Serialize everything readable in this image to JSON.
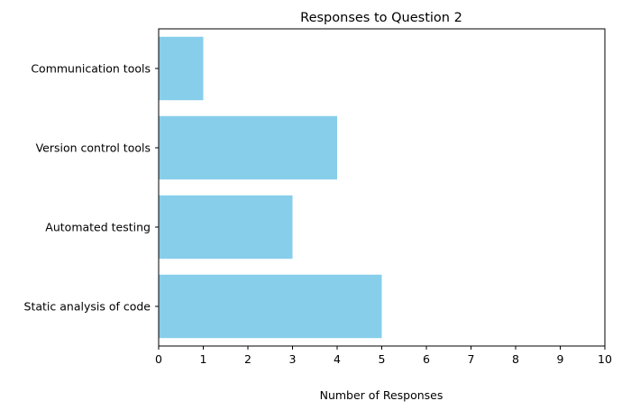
{
  "chart_data": {
    "type": "bar",
    "orientation": "horizontal",
    "title": "Responses to Question 2",
    "xlabel": "Number of Responses",
    "ylabel": "",
    "categories": [
      "Static analysis of code",
      "Automated testing",
      "Version control tools",
      "Communication tools"
    ],
    "values": [
      5,
      3,
      4,
      1
    ],
    "xlim": [
      0,
      10
    ],
    "xticks": [
      0,
      1,
      2,
      3,
      4,
      5,
      6,
      7,
      8,
      9,
      10
    ],
    "grid": false,
    "legend": false,
    "bar_color": "#87CEEB"
  }
}
